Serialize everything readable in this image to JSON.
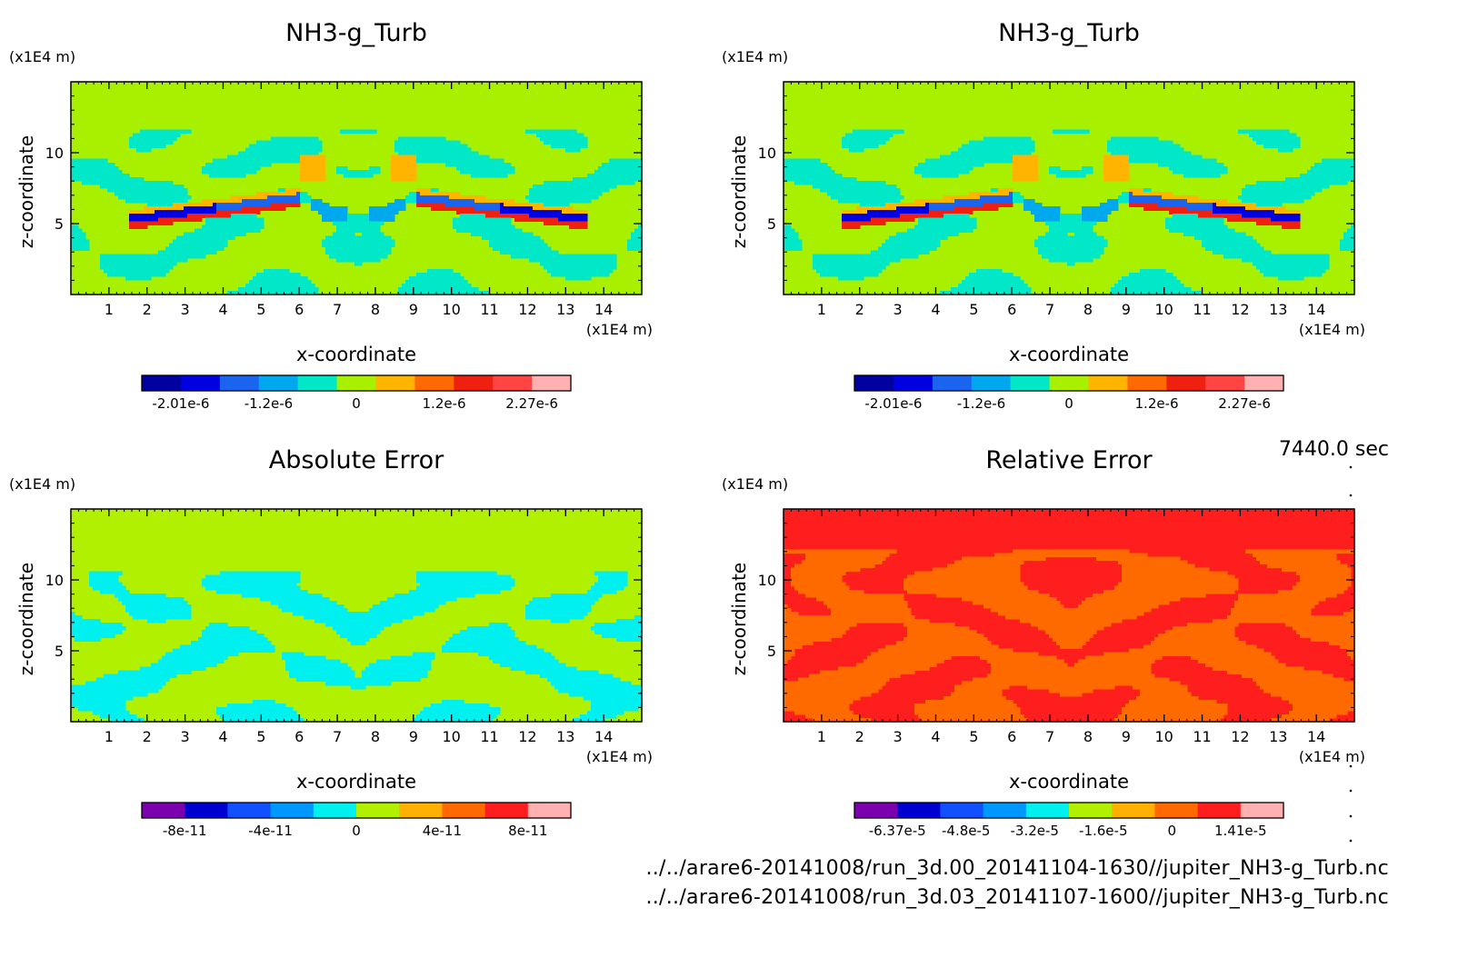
{
  "time_label": "7440.0 sec",
  "footer": {
    "line1": "../../arare6-20141008/run_3d.00_20141104-1630//jupiter_NH3-g_Turb.nc",
    "line2": "../../arare6-20141008/run_3d.03_20141107-1600//jupiter_NH3-g_Turb.nc"
  },
  "chart_data": [
    {
      "type": "heatmap",
      "title": "NH3-g_Turb",
      "xlabel": "x-coordinate",
      "ylabel": "z-coordinate",
      "x_unit": "(x1E4 m)",
      "y_unit": "(x1E4 m)",
      "x_ticks": [
        "1",
        "2",
        "3",
        "4",
        "5",
        "6",
        "7",
        "8",
        "9",
        "10",
        "11",
        "12",
        "13",
        "14"
      ],
      "y_ticks": [
        "5",
        "10"
      ],
      "xlim": [
        0,
        15
      ],
      "ylim": [
        0,
        15
      ],
      "background_level": 5,
      "colorbar": {
        "colors": [
          "#0000a0",
          "#0000e0",
          "#1a64f0",
          "#00a8ee",
          "#00e8c8",
          "#a8f000",
          "#ffb400",
          "#ff6a00",
          "#f02010",
          "#ff4444",
          "#ffb0b0"
        ],
        "tick_labels": [
          "-2.01e-6",
          "-1.2e-6",
          "0",
          "1.2e-6",
          "2.27e-6"
        ]
      }
    },
    {
      "type": "heatmap",
      "title": "NH3-g_Turb",
      "xlabel": "x-coordinate",
      "ylabel": "z-coordinate",
      "x_unit": "(x1E4 m)",
      "y_unit": "(x1E4 m)",
      "x_ticks": [
        "1",
        "2",
        "3",
        "4",
        "5",
        "6",
        "7",
        "8",
        "9",
        "10",
        "11",
        "12",
        "13",
        "14"
      ],
      "y_ticks": [
        "5",
        "10"
      ],
      "xlim": [
        0,
        15
      ],
      "ylim": [
        0,
        15
      ],
      "background_level": 5,
      "colorbar": {
        "colors": [
          "#0000a0",
          "#0000e0",
          "#1a64f0",
          "#00a8ee",
          "#00e8c8",
          "#a8f000",
          "#ffb400",
          "#ff6a00",
          "#f02010",
          "#ff4444",
          "#ffb0b0"
        ],
        "tick_labels": [
          "-2.01e-6",
          "-1.2e-6",
          "0",
          "1.2e-6",
          "2.27e-6"
        ]
      }
    },
    {
      "type": "heatmap",
      "title": "Absolute Error",
      "xlabel": "x-coordinate",
      "ylabel": "z-coordinate",
      "x_unit": "(x1E4 m)",
      "y_unit": "(x1E4 m)",
      "x_ticks": [
        "1",
        "2",
        "3",
        "4",
        "5",
        "6",
        "7",
        "8",
        "9",
        "10",
        "11",
        "12",
        "13",
        "14"
      ],
      "y_ticks": [
        "5",
        "10"
      ],
      "xlim": [
        0,
        15
      ],
      "ylim": [
        0,
        15
      ],
      "background_level": 5,
      "colorbar": {
        "colors": [
          "#7a00b0",
          "#0000d0",
          "#1050ff",
          "#0098ff",
          "#00f0f0",
          "#b0f000",
          "#ffb000",
          "#ff6a00",
          "#ff1e1e",
          "#ffb0b0"
        ],
        "tick_labels": [
          "-8e-11",
          "-4e-11",
          "0",
          "4e-11",
          "8e-11"
        ]
      }
    },
    {
      "type": "heatmap",
      "title": "Relative Error",
      "xlabel": "x-coordinate",
      "ylabel": "z-coordinate",
      "x_unit": "(x1E4 m)",
      "y_unit": "(x1E4 m)",
      "x_ticks": [
        "1",
        "2",
        "3",
        "4",
        "5",
        "6",
        "7",
        "8",
        "9",
        "10",
        "11",
        "12",
        "13",
        "14"
      ],
      "y_ticks": [
        "5",
        "10"
      ],
      "xlim": [
        0,
        15
      ],
      "ylim": [
        0,
        15
      ],
      "background_level": 8,
      "colorbar": {
        "colors": [
          "#7a00b0",
          "#0000d0",
          "#1050ff",
          "#0098ff",
          "#00f0f0",
          "#b0f000",
          "#ffb000",
          "#ff6a00",
          "#ff1e1e",
          "#ffb0b0"
        ],
        "tick_labels": [
          "-6.37e-5",
          "-4.8e-5",
          "-3.2e-5",
          "-1.6e-5",
          "0",
          "1.41e-5"
        ]
      }
    }
  ]
}
